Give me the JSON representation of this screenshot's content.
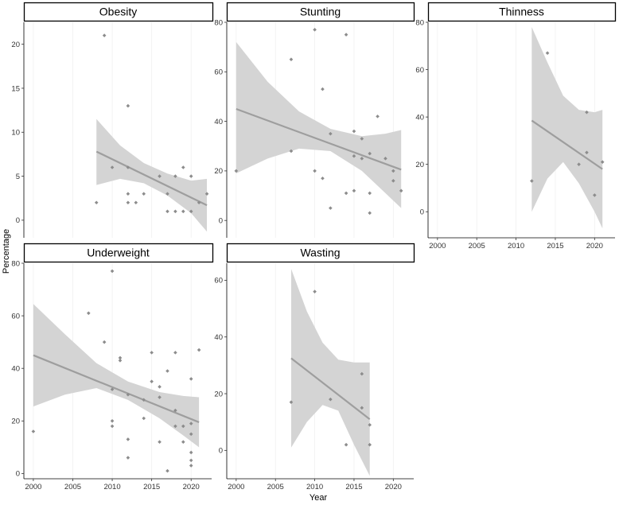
{
  "chart_data": {
    "type": "scatter",
    "subtype": "faceted scatter with linear regression line and confidence band",
    "xlabel": "Year",
    "ylabel": "Percentage",
    "xticks": [
      2000,
      2005,
      2010,
      2015,
      2020
    ],
    "colors": {
      "point": "#8c8c8c",
      "line": "#9e9e9e",
      "band": "#d4d4d4",
      "strip_border": "#000000"
    },
    "panels": [
      {
        "title": "Obesity",
        "xlim": [
          1998.8,
          2022.6
        ],
        "ylim": [
          -2,
          22.5
        ],
        "yticks": [
          0,
          5,
          10,
          15,
          20
        ],
        "points": [
          {
            "x": 2008,
            "y": 2
          },
          {
            "x": 2009,
            "y": 21
          },
          {
            "x": 2010,
            "y": 6
          },
          {
            "x": 2012,
            "y": 13
          },
          {
            "x": 2012,
            "y": 6
          },
          {
            "x": 2012,
            "y": 3
          },
          {
            "x": 2012,
            "y": 2
          },
          {
            "x": 2013,
            "y": 2
          },
          {
            "x": 2014,
            "y": 3
          },
          {
            "x": 2016,
            "y": 5
          },
          {
            "x": 2017,
            "y": 3
          },
          {
            "x": 2017,
            "y": 1
          },
          {
            "x": 2018,
            "y": 5
          },
          {
            "x": 2018,
            "y": 1
          },
          {
            "x": 2019,
            "y": 6
          },
          {
            "x": 2019,
            "y": 1
          },
          {
            "x": 2020,
            "y": 5
          },
          {
            "x": 2020,
            "y": 1
          },
          {
            "x": 2021,
            "y": 2
          },
          {
            "x": 2022,
            "y": 3
          }
        ],
        "fit": {
          "x": [
            2008,
            2022
          ],
          "y": [
            7.8,
            1.7
          ]
        },
        "band": [
          {
            "x": 2008,
            "lo": 4.0,
            "hi": 11.5
          },
          {
            "x": 2011,
            "lo": 4.7,
            "hi": 8.5
          },
          {
            "x": 2014,
            "lo": 4.2,
            "hi": 6.5
          },
          {
            "x": 2017,
            "lo": 2.8,
            "hi": 5.3
          },
          {
            "x": 2020,
            "lo": 0.8,
            "hi": 4.5
          },
          {
            "x": 2022,
            "lo": -1.3,
            "hi": 4.7
          }
        ]
      },
      {
        "title": "Stunting",
        "xlim": [
          1998.8,
          2022.6
        ],
        "ylim": [
          -7,
          80
        ],
        "yticks": [
          0,
          20,
          40,
          60,
          80
        ],
        "points": [
          {
            "x": 2000,
            "y": 20
          },
          {
            "x": 2007,
            "y": 65
          },
          {
            "x": 2007,
            "y": 28
          },
          {
            "x": 2010,
            "y": 77
          },
          {
            "x": 2010,
            "y": 20
          },
          {
            "x": 2011,
            "y": 53
          },
          {
            "x": 2011,
            "y": 17
          },
          {
            "x": 2012,
            "y": 35
          },
          {
            "x": 2012,
            "y": 5
          },
          {
            "x": 2014,
            "y": 75
          },
          {
            "x": 2014,
            "y": 11
          },
          {
            "x": 2015,
            "y": 36
          },
          {
            "x": 2015,
            "y": 26
          },
          {
            "x": 2015,
            "y": 12
          },
          {
            "x": 2016,
            "y": 33
          },
          {
            "x": 2016,
            "y": 25
          },
          {
            "x": 2017,
            "y": 27
          },
          {
            "x": 2017,
            "y": 11
          },
          {
            "x": 2017,
            "y": 3
          },
          {
            "x": 2018,
            "y": 42
          },
          {
            "x": 2019,
            "y": 25
          },
          {
            "x": 2020,
            "y": 20
          },
          {
            "x": 2020,
            "y": 16
          },
          {
            "x": 2021,
            "y": 12
          }
        ],
        "fit": {
          "x": [
            2000,
            2021
          ],
          "y": [
            45,
            20.5
          ]
        },
        "band": [
          {
            "x": 2000,
            "lo": 19,
            "hi": 72
          },
          {
            "x": 2004,
            "lo": 25,
            "hi": 56
          },
          {
            "x": 2008,
            "lo": 29,
            "hi": 44
          },
          {
            "x": 2012,
            "lo": 28,
            "hi": 37
          },
          {
            "x": 2016,
            "lo": 20,
            "hi": 34
          },
          {
            "x": 2019,
            "lo": 11,
            "hi": 35
          },
          {
            "x": 2021,
            "lo": 5,
            "hi": 36.5
          }
        ]
      },
      {
        "title": "Thinness",
        "xlim": [
          1998.8,
          2022.6
        ],
        "ylim": [
          -11,
          80
        ],
        "yticks": [
          0,
          20,
          40,
          60,
          80
        ],
        "points": [
          {
            "x": 2012,
            "y": 13
          },
          {
            "x": 2014,
            "y": 67
          },
          {
            "x": 2018,
            "y": 20
          },
          {
            "x": 2019,
            "y": 42
          },
          {
            "x": 2019,
            "y": 25
          },
          {
            "x": 2020,
            "y": 7
          },
          {
            "x": 2021,
            "y": 21
          }
        ],
        "fit": {
          "x": [
            2012,
            2021
          ],
          "y": [
            38.5,
            18
          ]
        },
        "band": [
          {
            "x": 2012,
            "lo": 0,
            "hi": 78
          },
          {
            "x": 2014,
            "lo": 14,
            "hi": 63
          },
          {
            "x": 2016,
            "lo": 21,
            "hi": 49
          },
          {
            "x": 2018,
            "lo": 12,
            "hi": 43
          },
          {
            "x": 2020,
            "lo": 0,
            "hi": 42
          },
          {
            "x": 2021,
            "lo": -7,
            "hi": 43
          }
        ]
      },
      {
        "title": "Underweight",
        "xlim": [
          1998.8,
          2022.6
        ],
        "ylim": [
          -2,
          80
        ],
        "yticks": [
          0,
          20,
          40,
          60,
          80
        ],
        "points": [
          {
            "x": 2000,
            "y": 16
          },
          {
            "x": 2007,
            "y": 61
          },
          {
            "x": 2009,
            "y": 50
          },
          {
            "x": 2010,
            "y": 77
          },
          {
            "x": 2010,
            "y": 32
          },
          {
            "x": 2010,
            "y": 20
          },
          {
            "x": 2010,
            "y": 18
          },
          {
            "x": 2011,
            "y": 44
          },
          {
            "x": 2011,
            "y": 43
          },
          {
            "x": 2012,
            "y": 30
          },
          {
            "x": 2012,
            "y": 13
          },
          {
            "x": 2012,
            "y": 6
          },
          {
            "x": 2014,
            "y": 28
          },
          {
            "x": 2014,
            "y": 21
          },
          {
            "x": 2015,
            "y": 46
          },
          {
            "x": 2015,
            "y": 35
          },
          {
            "x": 2016,
            "y": 33
          },
          {
            "x": 2016,
            "y": 29
          },
          {
            "x": 2016,
            "y": 12
          },
          {
            "x": 2017,
            "y": 39
          },
          {
            "x": 2017,
            "y": 1
          },
          {
            "x": 2018,
            "y": 46
          },
          {
            "x": 2018,
            "y": 24
          },
          {
            "x": 2018,
            "y": 18
          },
          {
            "x": 2019,
            "y": 18
          },
          {
            "x": 2019,
            "y": 12
          },
          {
            "x": 2020,
            "y": 36
          },
          {
            "x": 2020,
            "y": 19
          },
          {
            "x": 2020,
            "y": 15
          },
          {
            "x": 2020,
            "y": 8
          },
          {
            "x": 2020,
            "y": 5
          },
          {
            "x": 2020,
            "y": 3
          },
          {
            "x": 2021,
            "y": 47
          }
        ],
        "fit": {
          "x": [
            2000,
            2021
          ],
          "y": [
            45,
            19.5
          ]
        },
        "band": [
          {
            "x": 2000,
            "lo": 25.5,
            "hi": 64.5
          },
          {
            "x": 2004,
            "lo": 30,
            "hi": 53
          },
          {
            "x": 2008,
            "lo": 32.5,
            "hi": 42
          },
          {
            "x": 2012,
            "lo": 28,
            "hi": 35
          },
          {
            "x": 2016,
            "lo": 21,
            "hi": 31
          },
          {
            "x": 2019,
            "lo": 14.5,
            "hi": 29.5
          },
          {
            "x": 2021,
            "lo": 10,
            "hi": 29
          }
        ]
      },
      {
        "title": "Wasting",
        "xlim": [
          1998.8,
          2022.6
        ],
        "ylim": [
          -10,
          66
        ],
        "yticks": [
          0,
          20,
          40,
          60
        ],
        "points": [
          {
            "x": 2007,
            "y": 17
          },
          {
            "x": 2010,
            "y": 56
          },
          {
            "x": 2012,
            "y": 18
          },
          {
            "x": 2014,
            "y": 2
          },
          {
            "x": 2016,
            "y": 27
          },
          {
            "x": 2016,
            "y": 15
          },
          {
            "x": 2017,
            "y": 9
          },
          {
            "x": 2017,
            "y": 2
          }
        ],
        "fit": {
          "x": [
            2007,
            2017
          ],
          "y": [
            32.5,
            11
          ]
        },
        "band": [
          {
            "x": 2007,
            "lo": 1,
            "hi": 64
          },
          {
            "x": 2009,
            "lo": 10,
            "hi": 49
          },
          {
            "x": 2011,
            "lo": 16,
            "hi": 38
          },
          {
            "x": 2013,
            "lo": 14,
            "hi": 32
          },
          {
            "x": 2015,
            "lo": 2,
            "hi": 31
          },
          {
            "x": 2017,
            "lo": -9,
            "hi": 31
          }
        ]
      }
    ]
  }
}
